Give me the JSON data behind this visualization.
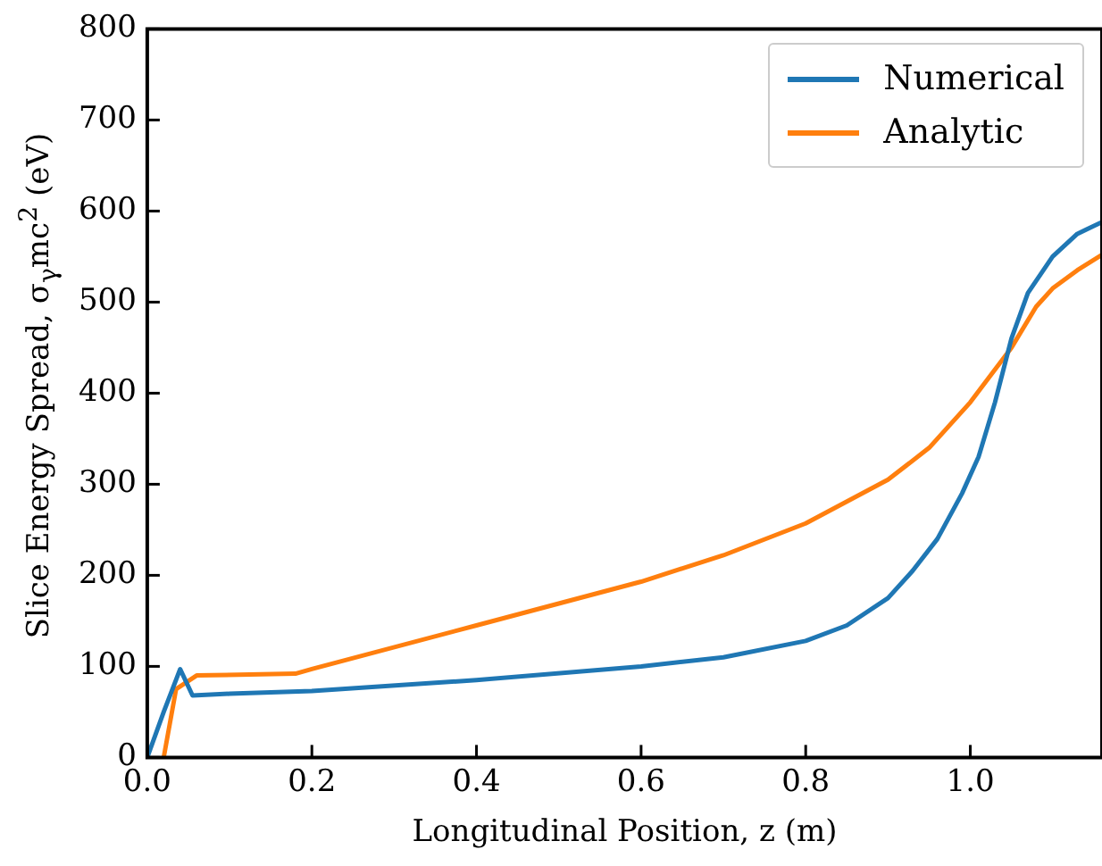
{
  "chart_data": {
    "type": "line",
    "xlabel": "Longitudinal Position, z (m)",
    "ylabel": "Slice Energy Spread, σ$_{γ}$mc$^{2}$ (eV)",
    "xlim": [
      0,
      1.16
    ],
    "ylim": [
      0,
      800
    ],
    "xticks": [
      {
        "value": 0,
        "label": "0.0"
      },
      {
        "value": 0.2,
        "label": "0.2"
      },
      {
        "value": 0.4,
        "label": "0.4"
      },
      {
        "value": 0.6,
        "label": "0.6"
      },
      {
        "value": 0.8,
        "label": "0.8"
      },
      {
        "value": 1,
        "label": "1.0"
      }
    ],
    "yticks": [
      0,
      100,
      200,
      300,
      400,
      500,
      600,
      700,
      800
    ],
    "grid": false,
    "legend": "top right",
    "marker": "none",
    "line_style": "solid",
    "series": [
      {
        "name": "Numerical",
        "color": "#1f77b4",
        "x": [
          0,
          0.02,
          0.04,
          0.055,
          0.1,
          0.2,
          0.4,
          0.6,
          0.7,
          0.8,
          0.85,
          0.9,
          0.93,
          0.96,
          0.99,
          1.01,
          1.03,
          1.05,
          1.07,
          1.1,
          1.13,
          1.16
        ],
        "values": [
          0,
          50,
          97,
          68,
          70,
          73,
          85,
          100,
          110,
          128,
          145,
          175,
          205,
          240,
          290,
          330,
          390,
          460,
          510,
          550,
          575,
          588
        ]
      },
      {
        "name": "Analytic",
        "color": "#ff7f0e",
        "x": [
          0.02,
          0.035,
          0.06,
          0.18,
          0.2,
          0.4,
          0.6,
          0.7,
          0.8,
          0.9,
          0.95,
          1.0,
          1.05,
          1.08,
          1.1,
          1.13,
          1.16
        ],
        "values": [
          0,
          75,
          90,
          92,
          97,
          145,
          193,
          222,
          257,
          305,
          340,
          390,
          450,
          495,
          515,
          535,
          552
        ]
      }
    ]
  }
}
